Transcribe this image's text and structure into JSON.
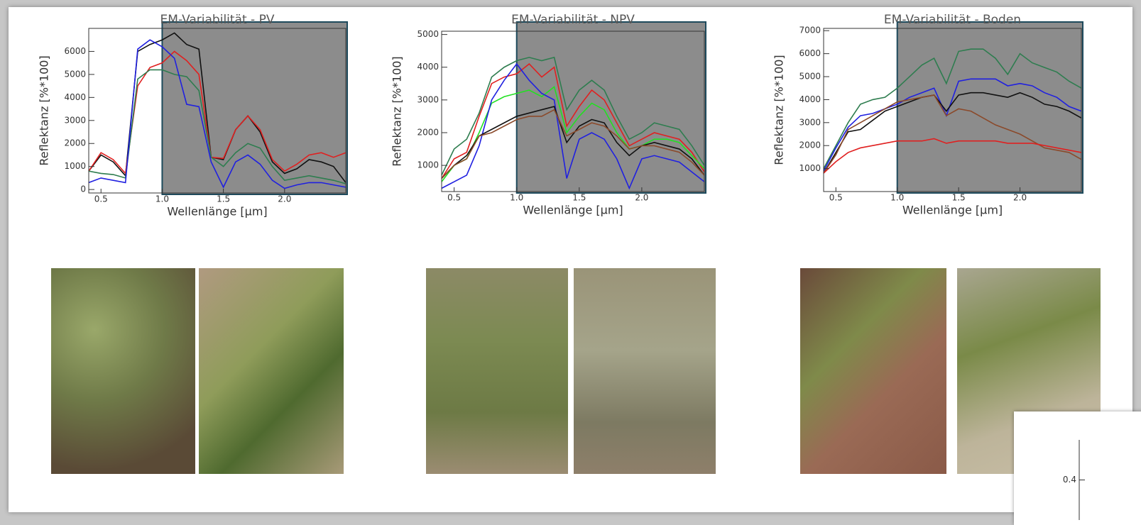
{
  "chart_data": [
    {
      "type": "line",
      "title": "EM-Variabilität - PV",
      "y_label": "Reflektanz [%*100]",
      "x_label": "Wellenlänge [μm]",
      "x": [
        0.4,
        0.5,
        0.6,
        0.7,
        0.8,
        0.9,
        1.0,
        1.1,
        1.2,
        1.3,
        1.4,
        1.5,
        1.6,
        1.7,
        1.8,
        1.9,
        2.0,
        2.1,
        2.2,
        2.3,
        2.4,
        2.5
      ],
      "xlim": [
        0.4,
        2.5
      ],
      "ylim": [
        -150,
        7000
      ],
      "xticks": [
        0.5,
        {
          "value": 1,
          "label": "1.0"
        },
        1.5,
        {
          "value": 2,
          "label": "2.0"
        }
      ],
      "yticks": [
        0,
        1000,
        2000,
        3000,
        4000,
        5000,
        6000
      ],
      "grid": false,
      "series": [
        {
          "color": "#111111",
          "values": [
            800,
            1500,
            1200,
            600,
            6000,
            6300,
            6500,
            6800,
            6300,
            6100,
            1400,
            1300,
            2600,
            3200,
            2500,
            1200,
            700,
            900,
            1300,
            1200,
            1000,
            300
          ]
        },
        {
          "color": "#e02020",
          "values": [
            800,
            1600,
            1300,
            700,
            4500,
            5300,
            5500,
            6000,
            5600,
            5000,
            1400,
            1350,
            2600,
            3200,
            2600,
            1300,
            800,
            1100,
            1500,
            1600,
            1400,
            1600
          ]
        },
        {
          "color": "#2e7d4f",
          "values": [
            800,
            700,
            650,
            500,
            4800,
            5200,
            5200,
            5000,
            4900,
            4300,
            1400,
            1000,
            1600,
            2000,
            1800,
            1000,
            400,
            500,
            600,
            500,
            400,
            250
          ]
        },
        {
          "color": "#2020e0",
          "values": [
            300,
            500,
            400,
            300,
            6100,
            6500,
            6200,
            5700,
            3700,
            3600,
            1200,
            100,
            1200,
            1500,
            1100,
            400,
            50,
            200,
            300,
            300,
            200,
            100
          ]
        }
      ]
    },
    {
      "type": "line",
      "title": "EM-Variabilität - NPV",
      "y_label": "Reflektanz [%*100]",
      "x_label": "Wellenlänge [μm]",
      "x": [
        0.4,
        0.5,
        0.6,
        0.7,
        0.8,
        0.9,
        1.0,
        1.1,
        1.2,
        1.3,
        1.4,
        1.5,
        1.6,
        1.7,
        1.8,
        1.9,
        2.0,
        2.1,
        2.2,
        2.3,
        2.4,
        2.5
      ],
      "xlim": [
        0.4,
        2.5
      ],
      "ylim": [
        200,
        5100
      ],
      "xticks": [
        0.5,
        {
          "value": 1,
          "label": "1.0"
        },
        1.5,
        {
          "value": 2,
          "label": "2.0"
        }
      ],
      "yticks": [
        1000,
        2000,
        3000,
        4000,
        5000
      ],
      "grid": false,
      "series": [
        {
          "color": "#2e7d4f",
          "values": [
            700,
            1500,
            1800,
            2600,
            3700,
            4000,
            4200,
            4300,
            4200,
            4300,
            2700,
            3300,
            3600,
            3300,
            2500,
            1800,
            2000,
            2300,
            2200,
            2100,
            1600,
            1000
          ]
        },
        {
          "color": "#e02020",
          "values": [
            600,
            1200,
            1400,
            2500,
            3500,
            3700,
            3800,
            4100,
            3700,
            4000,
            2200,
            2800,
            3300,
            3000,
            2300,
            1600,
            1800,
            2000,
            1900,
            1800,
            1400,
            800
          ]
        },
        {
          "color": "#22e022",
          "values": [
            500,
            1000,
            1200,
            2000,
            2900,
            3100,
            3200,
            3300,
            3100,
            3400,
            2000,
            2500,
            2900,
            2700,
            2000,
            1500,
            1600,
            1800,
            1800,
            1700,
            1300,
            900
          ]
        },
        {
          "color": "#2020e0",
          "values": [
            300,
            500,
            700,
            1600,
            3000,
            3600,
            4100,
            3600,
            3200,
            3000,
            600,
            1800,
            2000,
            1800,
            1200,
            300,
            1200,
            1300,
            1200,
            1100,
            800,
            500
          ]
        },
        {
          "color": "#111111",
          "values": [
            600,
            1000,
            1300,
            1900,
            2100,
            2300,
            2500,
            2600,
            2700,
            2800,
            1700,
            2200,
            2400,
            2300,
            1700,
            1300,
            1600,
            1700,
            1600,
            1500,
            1200,
            700
          ]
        },
        {
          "color": "#8b4a2b",
          "values": [
            600,
            1000,
            1200,
            1900,
            2000,
            2200,
            2400,
            2500,
            2500,
            2700,
            1900,
            2100,
            2300,
            2200,
            1900,
            1500,
            1600,
            1600,
            1500,
            1400,
            1100,
            700
          ]
        }
      ]
    },
    {
      "type": "line",
      "title": "EM-Variabilität - Boden",
      "y_label": "Reflektanz [%*100]",
      "x_label": "Wellenlänge [μm]",
      "x": [
        0.4,
        0.5,
        0.6,
        0.7,
        0.8,
        0.9,
        1.0,
        1.1,
        1.2,
        1.3,
        1.4,
        1.5,
        1.6,
        1.7,
        1.8,
        1.9,
        2.0,
        2.1,
        2.2,
        2.3,
        2.4,
        2.5
      ],
      "xlim": [
        0.4,
        2.5
      ],
      "ylim": [
        0,
        7100
      ],
      "xticks": [
        0.5,
        {
          "value": 1,
          "label": "1.0"
        },
        1.5,
        {
          "value": 2,
          "label": "2.0"
        }
      ],
      "yticks": [
        1000,
        2000,
        3000,
        4000,
        5000,
        6000,
        7000
      ],
      "grid": false,
      "series": [
        {
          "color": "#2e7d4f",
          "values": [
            1000,
            2000,
            3000,
            3800,
            4000,
            4100,
            4500,
            5000,
            5500,
            5800,
            4700,
            6100,
            6200,
            6200,
            5800,
            5100,
            6000,
            5600,
            5400,
            5200,
            4800,
            4500
          ]
        },
        {
          "color": "#2020e0",
          "values": [
            900,
            1900,
            2800,
            3300,
            3400,
            3600,
            3800,
            4100,
            4300,
            4500,
            3300,
            4800,
            4900,
            4900,
            4900,
            4600,
            4700,
            4600,
            4300,
            4100,
            3700,
            3500
          ]
        },
        {
          "color": "#111111",
          "values": [
            800,
            1700,
            2600,
            2700,
            3100,
            3500,
            3700,
            3900,
            4100,
            4200,
            3500,
            4200,
            4300,
            4300,
            4200,
            4100,
            4300,
            4100,
            3800,
            3700,
            3500,
            3200
          ]
        },
        {
          "color": "#8b4a2b",
          "values": [
            800,
            1600,
            2700,
            3000,
            3300,
            3600,
            3900,
            4000,
            4100,
            4200,
            3300,
            3600,
            3500,
            3200,
            2900,
            2700,
            2500,
            2200,
            1900,
            1800,
            1700,
            1400
          ]
        },
        {
          "color": "#e02020",
          "values": [
            800,
            1300,
            1700,
            1900,
            2000,
            2100,
            2200,
            2200,
            2200,
            2300,
            2100,
            2200,
            2200,
            2200,
            2200,
            2100,
            2100,
            2100,
            2000,
            1900,
            1800,
            1700
          ]
        }
      ]
    },
    {
      "type": "axis",
      "ylim": [
        0.3,
        0.5
      ],
      "yticks": [
        0.4
      ]
    }
  ]
}
